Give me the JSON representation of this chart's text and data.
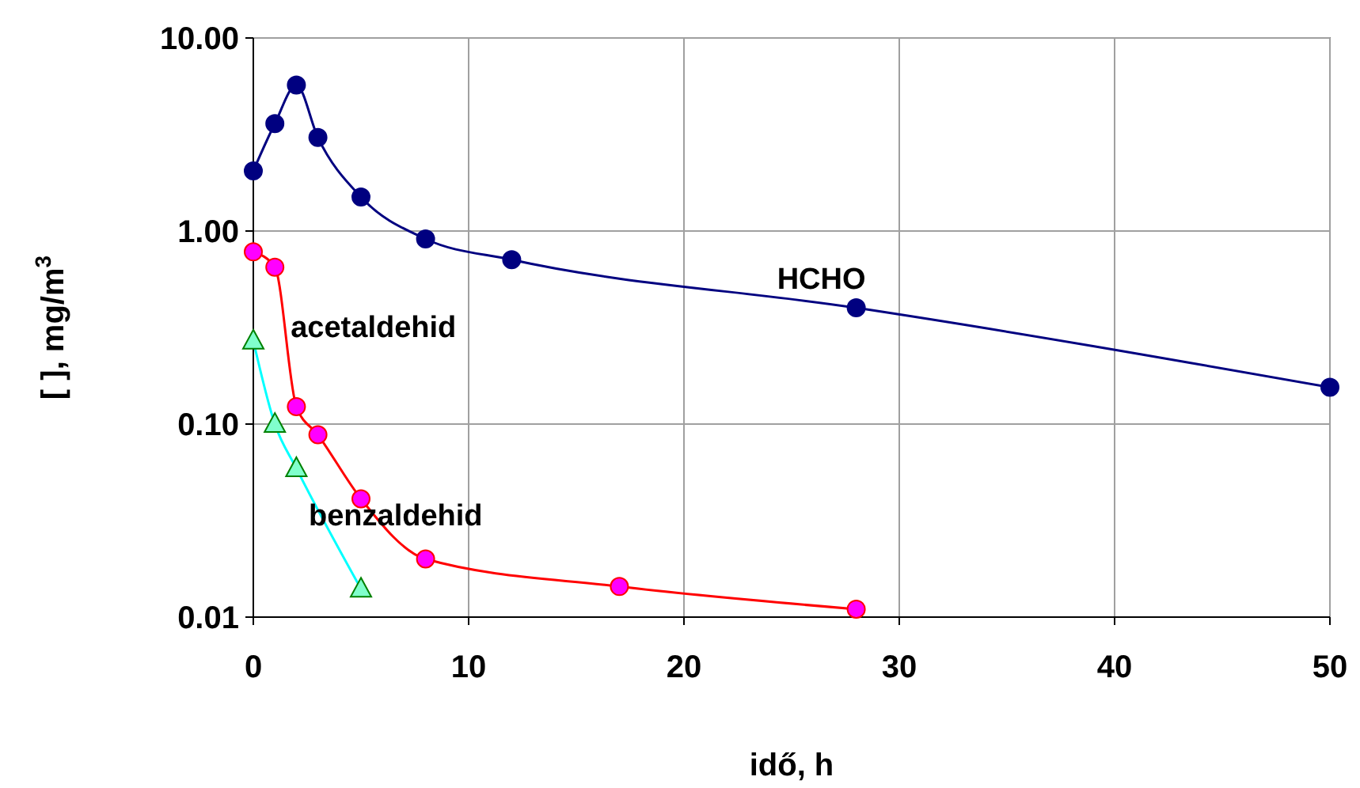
{
  "chart_data": {
    "type": "line",
    "xlabel": "idő,  h",
    "ylabel": "[ ],  mg/m$^{3}$",
    "log": "y",
    "grid": true,
    "line_style": "solid",
    "xlim": [
      0,
      50
    ],
    "xticks": [
      0,
      10,
      20,
      30,
      40,
      50
    ],
    "ylim": [
      0.01,
      10
    ],
    "yticks": [
      {
        "value": 0.01,
        "label": "0.01"
      },
      {
        "value": 0.1,
        "label": "0.10"
      },
      {
        "value": 1,
        "label": "1.00"
      },
      {
        "value": 10,
        "label": "10.00"
      }
    ],
    "series": [
      {
        "name": "HCHO",
        "color": "#000080",
        "marker": "circle",
        "x": [
          0,
          1,
          2,
          3,
          5,
          8,
          12,
          28,
          50
        ],
        "values": [
          2.05,
          3.6,
          5.7,
          3.05,
          1.5,
          0.91,
          0.71,
          0.4,
          0.155
        ]
      },
      {
        "name": "acetaldehid",
        "color": "#ff0000",
        "marker": "circle",
        "colors": [
          "#ff00ff",
          "#ff00ff",
          "#ff00ff",
          "#ff00ff",
          "#ff00ff",
          "#ff00ff",
          "#ff00ff",
          "#ff00ff"
        ],
        "x": [
          0,
          1,
          2,
          3,
          5,
          8,
          17,
          28
        ],
        "values": [
          0.78,
          0.65,
          0.123,
          0.088,
          0.041,
          0.02,
          0.0144,
          0.011
        ]
      },
      {
        "name": "benzaldehid",
        "color": "#00ffff",
        "marker": "triangle",
        "colors": [
          "#80ffcc",
          "#80ffcc",
          "#80ffcc",
          "#80ffcc"
        ],
        "x": [
          0,
          1,
          2,
          5
        ],
        "values": [
          0.27,
          0.1,
          0.059,
          0.014
        ]
      }
    ]
  }
}
